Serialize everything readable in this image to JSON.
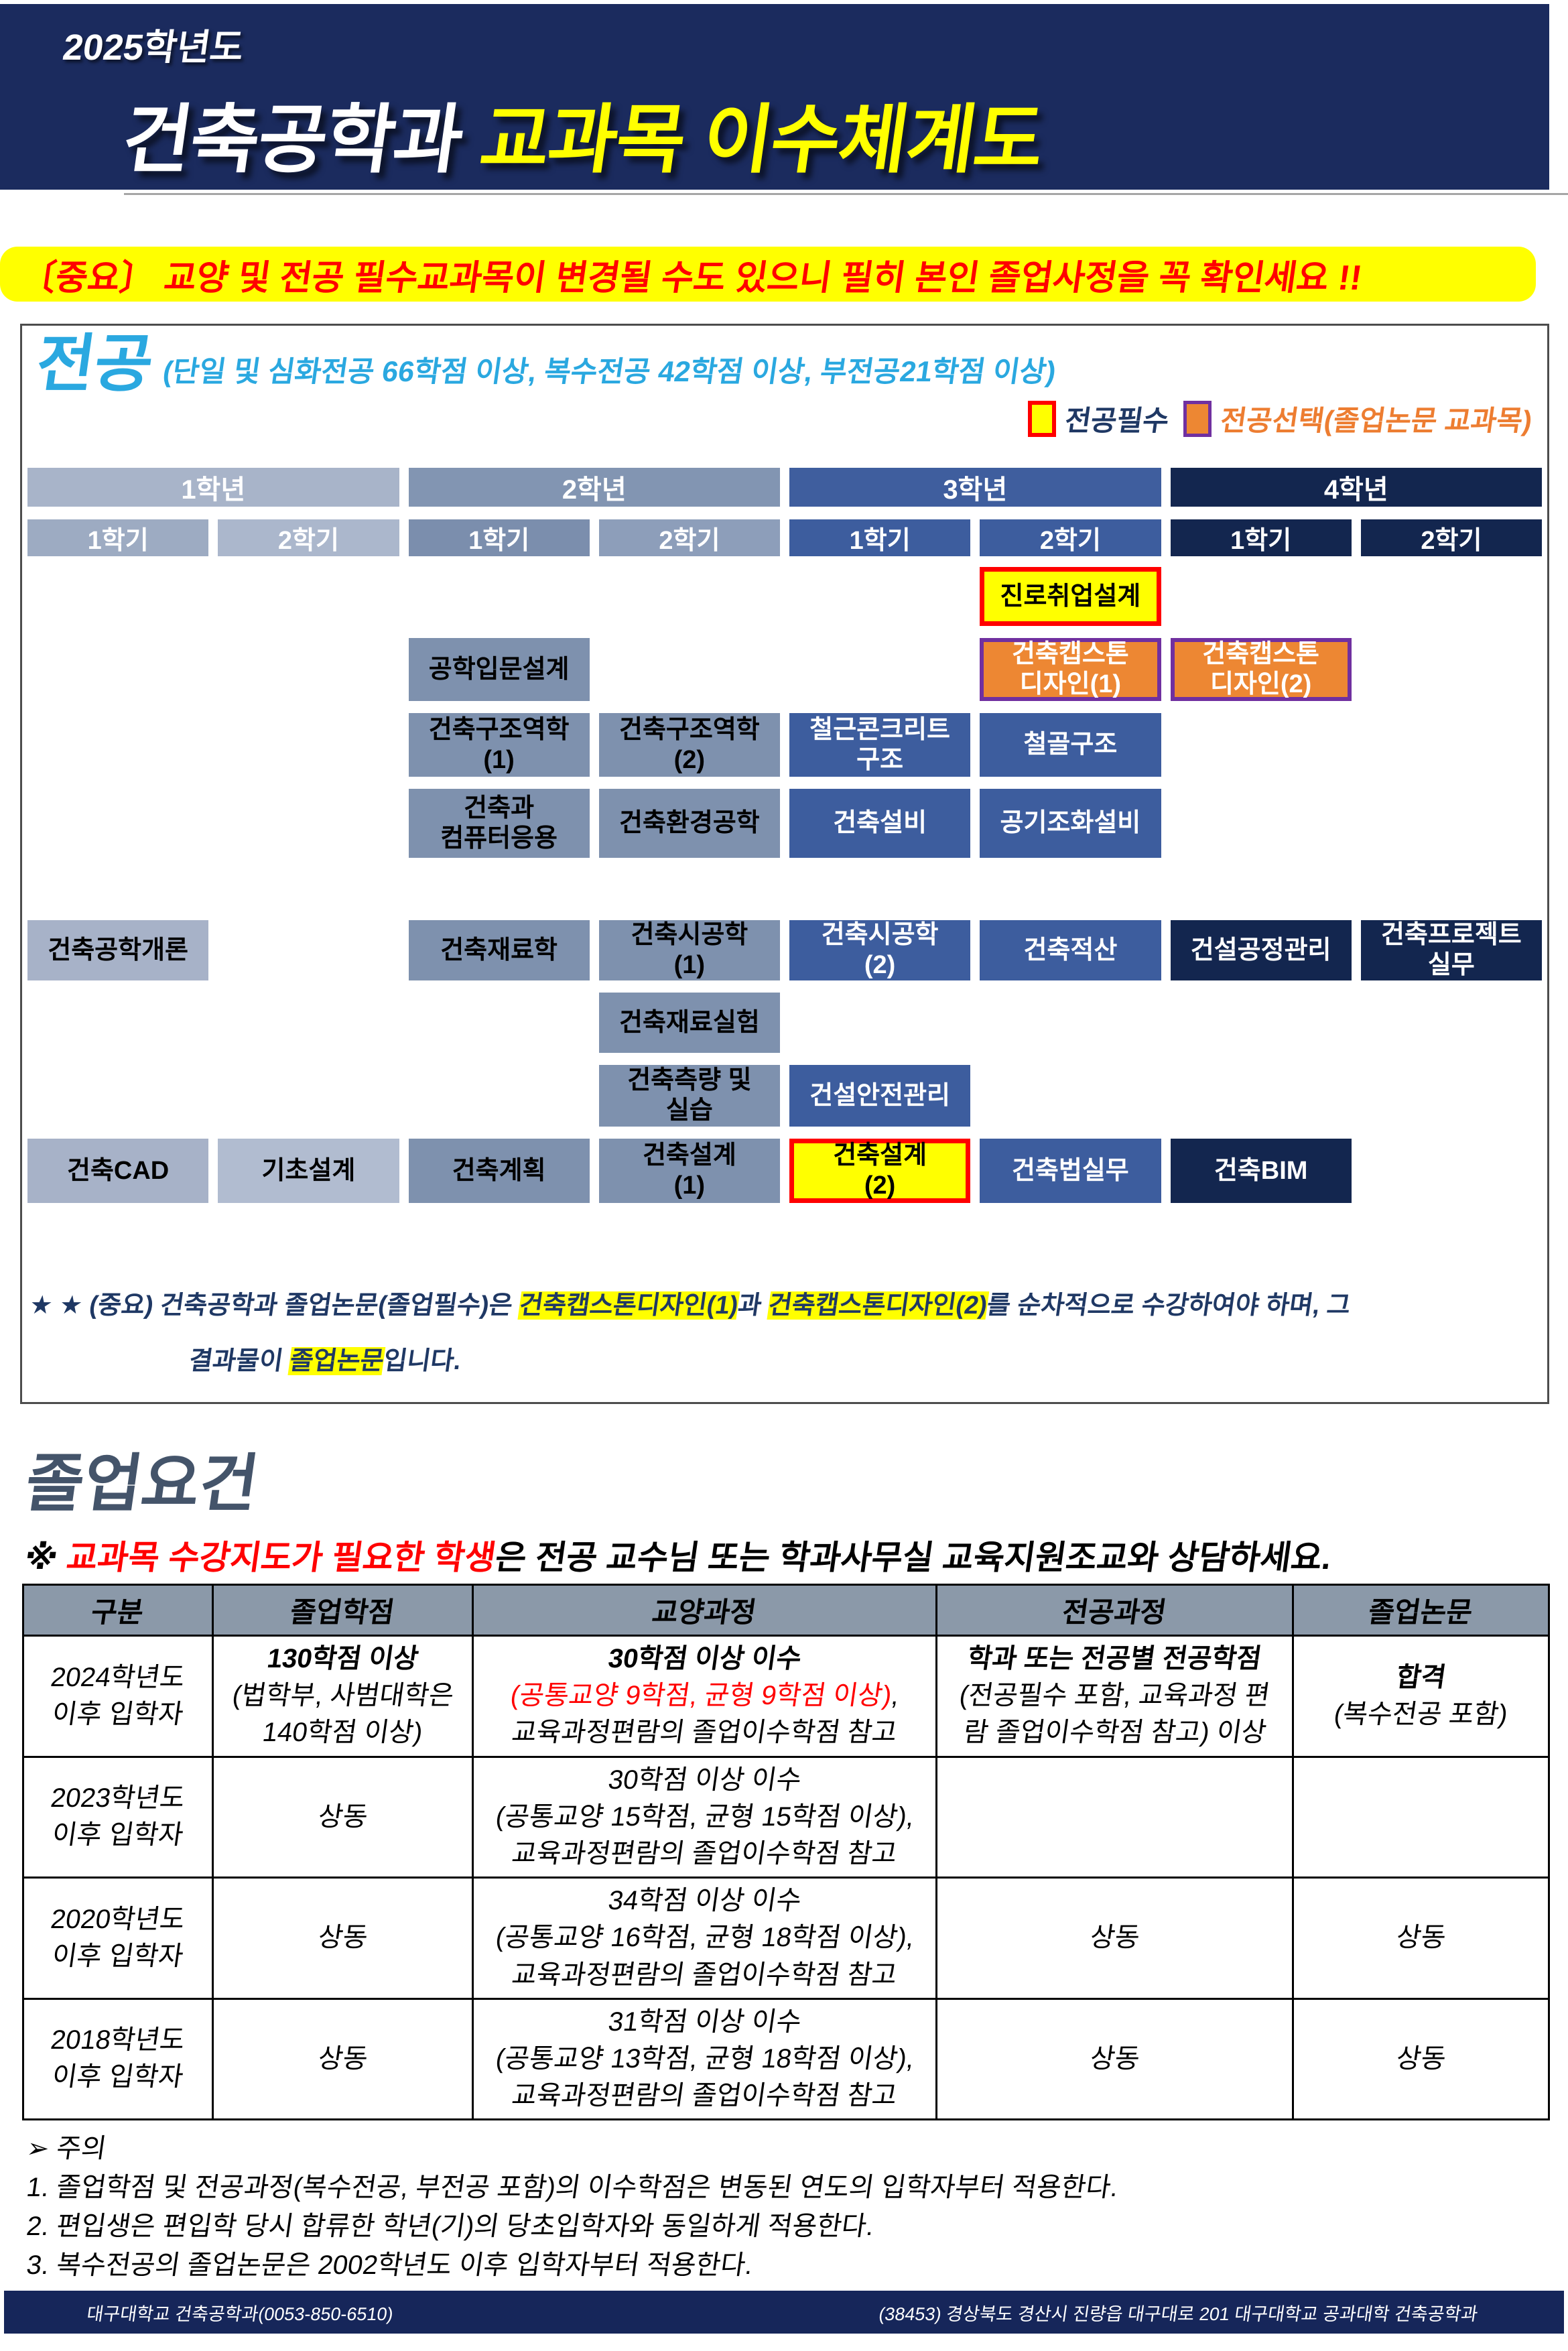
{
  "colors": {
    "header_bg": "#1b2b5e",
    "title_highlight": "#ffff00",
    "banner_bg": "#ffff00",
    "banner_text": "#ff0000",
    "major_title_blue": "#2aa8e0",
    "required_swatch": "#ffff00",
    "required_border": "#ff0000",
    "elective_swatch": "#ed8733",
    "elective_border": "#7030a0",
    "year1": "#a8b4c9",
    "year2": "#8295b2",
    "year3": "#3f5e9e",
    "year4": "#13264f",
    "course_year2_bg": "#7e91ae",
    "capstone_note_navy": "#1f3864",
    "grad_title": "#44546a",
    "table_header_bg": "#8b99a9",
    "footer_bg": "#16265a"
  },
  "header": {
    "year_label": "2025학년도",
    "title_main": "건축공학과 ",
    "title_highlight": "교과목 이수체계도"
  },
  "banner": {
    "text": "〔중요〕 교양 및 전공 필수교과목이 변경될 수도 있으니 필히 본인 졸업사정을 꼭 확인세요 !!"
  },
  "major": {
    "title": "전공",
    "subtitle": "(단일 및 심화전공 66학점 이상, 복수전공 42학점 이상, 부전공21학점 이상)",
    "legend": [
      {
        "label": "전공필수"
      },
      {
        "label": "전공선택(졸업논문 교과목)"
      }
    ],
    "years": [
      "1학년",
      "2학년",
      "3학년",
      "4학년"
    ],
    "semesters": [
      "1학기",
      "2학기",
      "1학기",
      "2학기",
      "1학기",
      "2학기",
      "1학기",
      "2학기"
    ],
    "courses": [
      {
        "r": "A",
        "c": 6,
        "t": "진로취업설계",
        "s": "yellow"
      },
      {
        "r": "B",
        "c": 3,
        "t": "공학입문설계",
        "s": "g2"
      },
      {
        "r": "B",
        "c": 6,
        "t": "건축캡스톤\n디자인(1)",
        "s": "orange"
      },
      {
        "r": "B",
        "c": 7,
        "t": "건축캡스톤\n디자인(2)",
        "s": "orange"
      },
      {
        "r": "C",
        "c": 3,
        "t": "건축구조역학\n(1)",
        "s": "g2"
      },
      {
        "r": "C",
        "c": 4,
        "t": "건축구조역학\n(2)",
        "s": "g2"
      },
      {
        "r": "C",
        "c": 5,
        "t": "철근콘크리트\n구조",
        "s": "b3"
      },
      {
        "r": "C",
        "c": 6,
        "t": "철골구조",
        "s": "b3"
      },
      {
        "r": "D",
        "c": 3,
        "t": "건축과\n컴퓨터응용",
        "s": "g2"
      },
      {
        "r": "D",
        "c": 4,
        "t": "건축환경공학",
        "s": "g2"
      },
      {
        "r": "D",
        "c": 5,
        "t": "건축설비",
        "s": "b3"
      },
      {
        "r": "D",
        "c": 6,
        "t": "공기조화설비",
        "s": "b3"
      },
      {
        "r": "E",
        "c": 1,
        "t": "건축공학개론",
        "s": "g1"
      },
      {
        "r": "E",
        "c": 3,
        "t": "건축재료학",
        "s": "g2"
      },
      {
        "r": "E",
        "c": 4,
        "t": "건축시공학\n(1)",
        "s": "g2"
      },
      {
        "r": "E",
        "c": 5,
        "t": "건축시공학\n(2)",
        "s": "b3"
      },
      {
        "r": "E",
        "c": 6,
        "t": "건축적산",
        "s": "b3"
      },
      {
        "r": "E",
        "c": 7,
        "t": "건설공정관리",
        "s": "n4"
      },
      {
        "r": "E",
        "c": 8,
        "t": "건축프로젝트\n실무",
        "s": "n4"
      },
      {
        "r": "F",
        "c": 4,
        "t": "건축재료실험",
        "s": "g2"
      },
      {
        "r": "G",
        "c": 4,
        "t": "건축측량 및\n실습",
        "s": "g2"
      },
      {
        "r": "G",
        "c": 5,
        "t": "건설안전관리",
        "s": "b3"
      },
      {
        "r": "H",
        "c": 1,
        "t": "건축CAD",
        "s": "g1"
      },
      {
        "r": "H",
        "c": 2,
        "t": "기초설계",
        "s": "g1b"
      },
      {
        "r": "H",
        "c": 3,
        "t": "건축계획",
        "s": "g2"
      },
      {
        "r": "H",
        "c": 4,
        "t": "건축설계\n(1)",
        "s": "g2"
      },
      {
        "r": "H",
        "c": 5,
        "t": "건축설계\n(2)",
        "s": "yellow"
      },
      {
        "r": "H",
        "c": 6,
        "t": "건축법실무",
        "s": "b3"
      },
      {
        "r": "H",
        "c": 7,
        "t": "건축BIM",
        "s": "n4"
      }
    ]
  },
  "capstone_note": {
    "line1": [
      {
        "t": "★ ★ (중요) 건축공학과 졸업논문(졸업필수)은 "
      },
      {
        "t": "건축캡스톤디자인(1)",
        "hl": true
      },
      {
        "t": "과 "
      },
      {
        "t": "건축캡스톤디자인(2)",
        "hl": true
      },
      {
        "t": "를 순차적으로  수강하여야 하며, 그"
      }
    ],
    "line2": [
      {
        "t": "결과물이 "
      },
      {
        "t": "졸업논문",
        "hl": true
      },
      {
        "t": "입니다."
      }
    ]
  },
  "graduation": {
    "title": "졸업요건",
    "advisory": [
      {
        "t": "※ "
      },
      {
        "t": "교과목 수강지도가 필요한 학생",
        "red": true
      },
      {
        "t": "은 전공 교수님 또는 학과사무실 교육지원조교와 상담하세요."
      }
    ],
    "table": {
      "headers": [
        "구분",
        "졸업학점",
        "교양과정",
        "전공과정",
        "졸업논문"
      ],
      "rows": [
        [
          [
            [
              {
                "t": "2024학년도"
              }
            ],
            [
              {
                "t": "이후 입학자"
              }
            ]
          ],
          [
            [
              {
                "t": "130학점 이상",
                "b": true
              }
            ],
            [
              {
                "t": "(법학부, 사범대학은"
              }
            ],
            [
              {
                "t": "140학점 이상)"
              }
            ]
          ],
          [
            [
              {
                "t": "30학점 이상 이수",
                "b": true
              }
            ],
            [
              {
                "t": "(공통교양 9학점, 균형 9학점 이상)",
                "red": true
              },
              {
                "t": ","
              }
            ],
            [
              {
                "t": "교육과정편람의 졸업이수학점 참고"
              }
            ]
          ],
          [
            [
              {
                "t": "학과 또는 전공별 전공학점",
                "b": true
              }
            ],
            [
              {
                "t": "(전공필수 포함, 교육과정 편"
              }
            ],
            [
              {
                "t": "람 졸업이수학점 참고) 이상"
              }
            ]
          ],
          [
            [
              {
                "t": "합격",
                "b": true
              }
            ],
            [
              {
                "t": "(복수전공 포함)"
              }
            ]
          ]
        ],
        [
          [
            [
              {
                "t": "2023학년도"
              }
            ],
            [
              {
                "t": "이후 입학자"
              }
            ]
          ],
          [
            [
              {
                "t": "상동"
              }
            ]
          ],
          [
            [
              {
                "t": "30학점 이상 이수"
              }
            ],
            [
              {
                "t": "(공통교양 15학점, 균형 15학점 이상),"
              }
            ],
            [
              {
                "t": "교육과정편람의 졸업이수학점 참고"
              }
            ]
          ],
          [],
          []
        ],
        [
          [
            [
              {
                "t": "2020학년도"
              }
            ],
            [
              {
                "t": "이후 입학자"
              }
            ]
          ],
          [
            [
              {
                "t": "상동"
              }
            ]
          ],
          [
            [
              {
                "t": "34학점 이상 이수"
              }
            ],
            [
              {
                "t": "(공통교양 16학점, 균형 18학점 이상),"
              }
            ],
            [
              {
                "t": "교육과정편람의 졸업이수학점 참고"
              }
            ]
          ],
          [
            [
              {
                "t": "상동"
              }
            ]
          ],
          [
            [
              {
                "t": "상동"
              }
            ]
          ]
        ],
        [
          [
            [
              {
                "t": "2018학년도"
              }
            ],
            [
              {
                "t": "이후 입학자"
              }
            ]
          ],
          [
            [
              {
                "t": "상동"
              }
            ]
          ],
          [
            [
              {
                "t": "31학점 이상 이수"
              }
            ],
            [
              {
                "t": "(공통교양 13학점, 균형 18학점 이상),"
              }
            ],
            [
              {
                "t": "교육과정편람의 졸업이수학점 참고"
              }
            ]
          ],
          [
            [
              {
                "t": "상동"
              }
            ]
          ],
          [
            [
              {
                "t": "상동"
              }
            ]
          ]
        ]
      ]
    }
  },
  "notes": {
    "title": "➢ 주의",
    "items": [
      "1. 졸업학점 및 전공과정(복수전공, 부전공 포함)의 이수학점은 변동된 연도의 입학자부터 적용한다.",
      "2. 편입생은 편입학 당시 합류한 학년(기)의 당초입학자와 동일하게 적용한다.",
      "3. 복수전공의 졸업논문은 2002학년도 이후 입학자부터 적용한다."
    ]
  },
  "footer": {
    "left": "대구대학교 건축공학과(0053-850-6510)",
    "right": "(38453) 경상북도 경산시 진량읍 대구대로 201 대구대학교 공과대학 건축공학과"
  }
}
